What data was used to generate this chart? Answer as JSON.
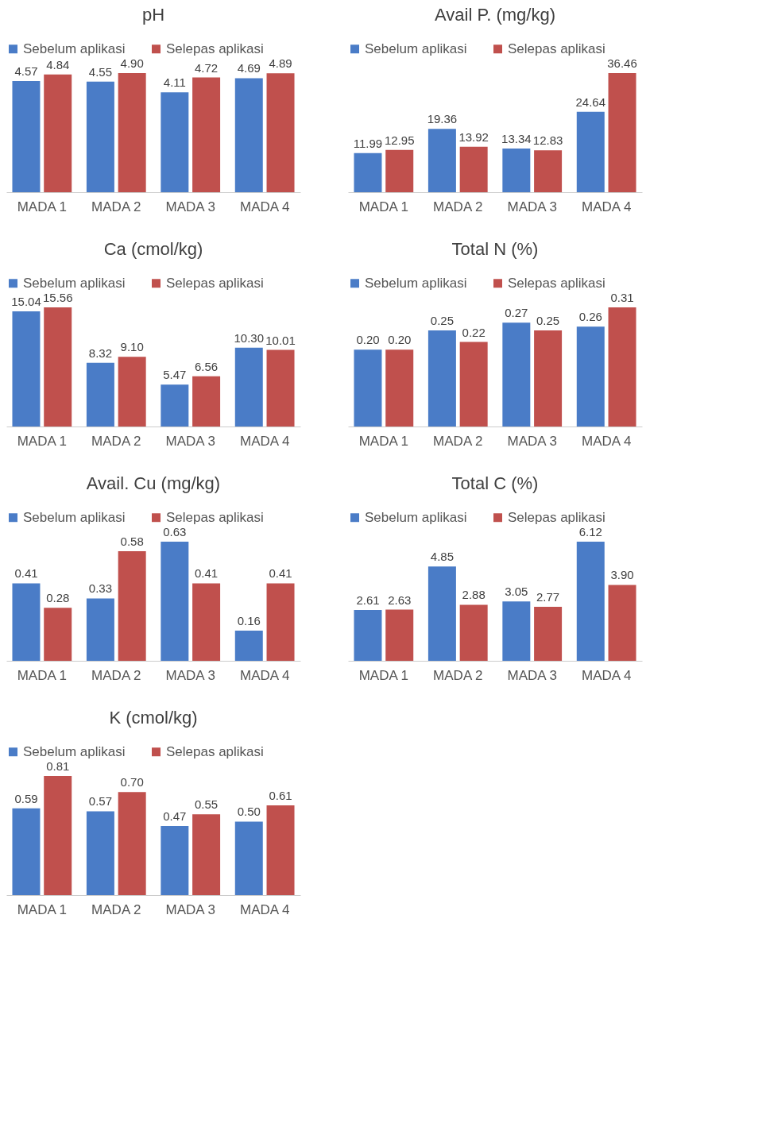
{
  "chart_data": [
    {
      "type": "bar",
      "title": "pH",
      "categories": [
        "MADA 1",
        "MADA 2",
        "MADA 3",
        "MADA 4"
      ],
      "legend": "top",
      "tick_labels": "x",
      "series": [
        {
          "name": "Sebelum aplikasi",
          "color": "#4a7cc7",
          "values": [
            4.57,
            4.55,
            4.11,
            4.69
          ],
          "value_labels": [
            "4.57",
            "4.55",
            "4.11",
            "4.69"
          ]
        },
        {
          "name": "Selepas aplikasi",
          "color": "#c0504d",
          "values": [
            4.84,
            4.9,
            4.72,
            4.89
          ],
          "value_labels": [
            "4.84",
            "4.90",
            "4.72",
            "4.89"
          ]
        }
      ]
    },
    {
      "type": "bar",
      "title": "Avail P. (mg/kg)",
      "categories": [
        "MADA 1",
        "MADA 2",
        "MADA 3",
        "MADA 4"
      ],
      "legend": "top",
      "tick_labels": "x",
      "series": [
        {
          "name": "Sebelum aplikasi",
          "color": "#4a7cc7",
          "values": [
            11.99,
            19.36,
            13.34,
            24.64
          ],
          "value_labels": [
            "11.99",
            "19.36",
            "13.34",
            "24.64"
          ]
        },
        {
          "name": "Selepas aplikasi",
          "color": "#c0504d",
          "values": [
            12.95,
            13.92,
            12.83,
            36.46
          ],
          "value_labels": [
            "12.95",
            "13.92",
            "12.83",
            "36.46"
          ]
        }
      ]
    },
    {
      "type": "bar",
      "title": "Ca (cmol/kg)",
      "categories": [
        "MADA 1",
        "MADA 2",
        "MADA 3",
        "MADA 4"
      ],
      "legend": "top",
      "tick_labels": "x",
      "series": [
        {
          "name": "Sebelum aplikasi",
          "color": "#4a7cc7",
          "values": [
            15.04,
            8.32,
            5.47,
            10.3
          ],
          "value_labels": [
            "15.04",
            "8.32",
            "5.47",
            "10.30"
          ]
        },
        {
          "name": "Selepas aplikasi",
          "color": "#c0504d",
          "values": [
            15.56,
            9.1,
            6.56,
            10.01
          ],
          "value_labels": [
            "15.56",
            "9.10",
            "6.56",
            "10.01"
          ]
        }
      ]
    },
    {
      "type": "bar",
      "title": "Total N (%)",
      "categories": [
        "MADA 1",
        "MADA 2",
        "MADA 3",
        "MADA 4"
      ],
      "legend": "top",
      "tick_labels": "x",
      "series": [
        {
          "name": "Sebelum aplikasi",
          "color": "#4a7cc7",
          "values": [
            0.2,
            0.25,
            0.27,
            0.26
          ],
          "value_labels": [
            "0.20",
            "0.25",
            "0.27",
            "0.26"
          ]
        },
        {
          "name": "Selepas aplikasi",
          "color": "#c0504d",
          "values": [
            0.2,
            0.22,
            0.25,
            0.31
          ],
          "value_labels": [
            "0.20",
            "0.22",
            "0.25",
            "0.31"
          ]
        }
      ]
    },
    {
      "type": "bar",
      "title": "Avail. Cu (mg/kg)",
      "categories": [
        "MADA 1",
        "MADA 2",
        "MADA 3",
        "MADA 4"
      ],
      "legend": "top",
      "tick_labels": "x",
      "series": [
        {
          "name": "Sebelum aplikasi",
          "color": "#4a7cc7",
          "values": [
            0.41,
            0.33,
            0.63,
            0.16
          ],
          "value_labels": [
            "0.41",
            "0.33",
            "0.63",
            "0.16"
          ]
        },
        {
          "name": "Selepas aplikasi",
          "color": "#c0504d",
          "values": [
            0.28,
            0.58,
            0.41,
            0.41
          ],
          "value_labels": [
            "0.28",
            "0.58",
            "0.41",
            "0.41"
          ]
        }
      ]
    },
    {
      "type": "bar",
      "title": "Total C (%)",
      "categories": [
        "MADA 1",
        "MADA 2",
        "MADA 3",
        "MADA 4"
      ],
      "legend": "top",
      "tick_labels": "x",
      "series": [
        {
          "name": "Sebelum aplikasi",
          "color": "#4a7cc7",
          "values": [
            2.61,
            4.85,
            3.05,
            6.12
          ],
          "value_labels": [
            "2.61",
            "4.85",
            "3.05",
            "6.12"
          ]
        },
        {
          "name": "Selepas aplikasi",
          "color": "#c0504d",
          "values": [
            2.63,
            2.88,
            2.77,
            3.9
          ],
          "value_labels": [
            "2.63",
            "2.88",
            "2.77",
            "3.90"
          ]
        }
      ]
    },
    {
      "type": "bar",
      "title": "K (cmol/kg)",
      "categories": [
        "MADA 1",
        "MADA 2",
        "MADA 3",
        "MADA 4"
      ],
      "legend": "top",
      "tick_labels": "x",
      "series": [
        {
          "name": "Sebelum aplikasi",
          "color": "#4a7cc7",
          "values": [
            0.59,
            0.57,
            0.47,
            0.5
          ],
          "value_labels": [
            "0.59",
            "0.57",
            "0.47",
            "0.50"
          ]
        },
        {
          "name": "Selepas aplikasi",
          "color": "#c0504d",
          "values": [
            0.81,
            0.7,
            0.55,
            0.61
          ],
          "value_labels": [
            "0.81",
            "0.70",
            "0.55",
            "0.61"
          ]
        }
      ]
    }
  ]
}
